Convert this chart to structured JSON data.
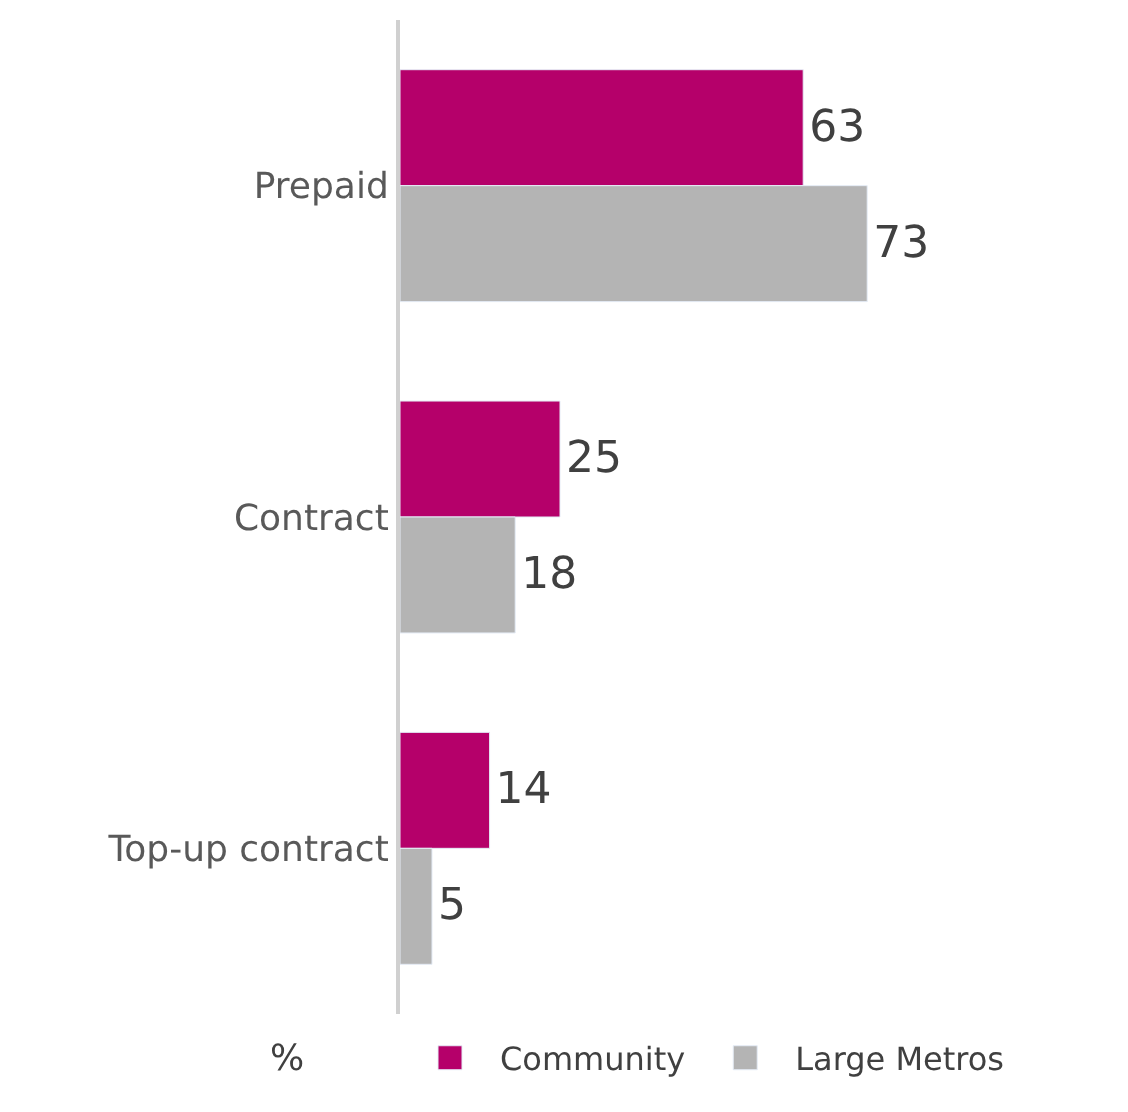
{
  "chart_data": {
    "type": "bar",
    "orientation": "horizontal",
    "categories": [
      "Prepaid",
      "Contract",
      "Top-up contract"
    ],
    "series": [
      {
        "name": "Community",
        "color": "#b5006a",
        "values": [
          63,
          25,
          14
        ]
      },
      {
        "name": "Large Metros",
        "color": "#b4b4b4",
        "values": [
          73,
          18,
          5
        ]
      }
    ],
    "data_labels": true,
    "legend": "bottom",
    "annotations": [
      "%"
    ]
  }
}
